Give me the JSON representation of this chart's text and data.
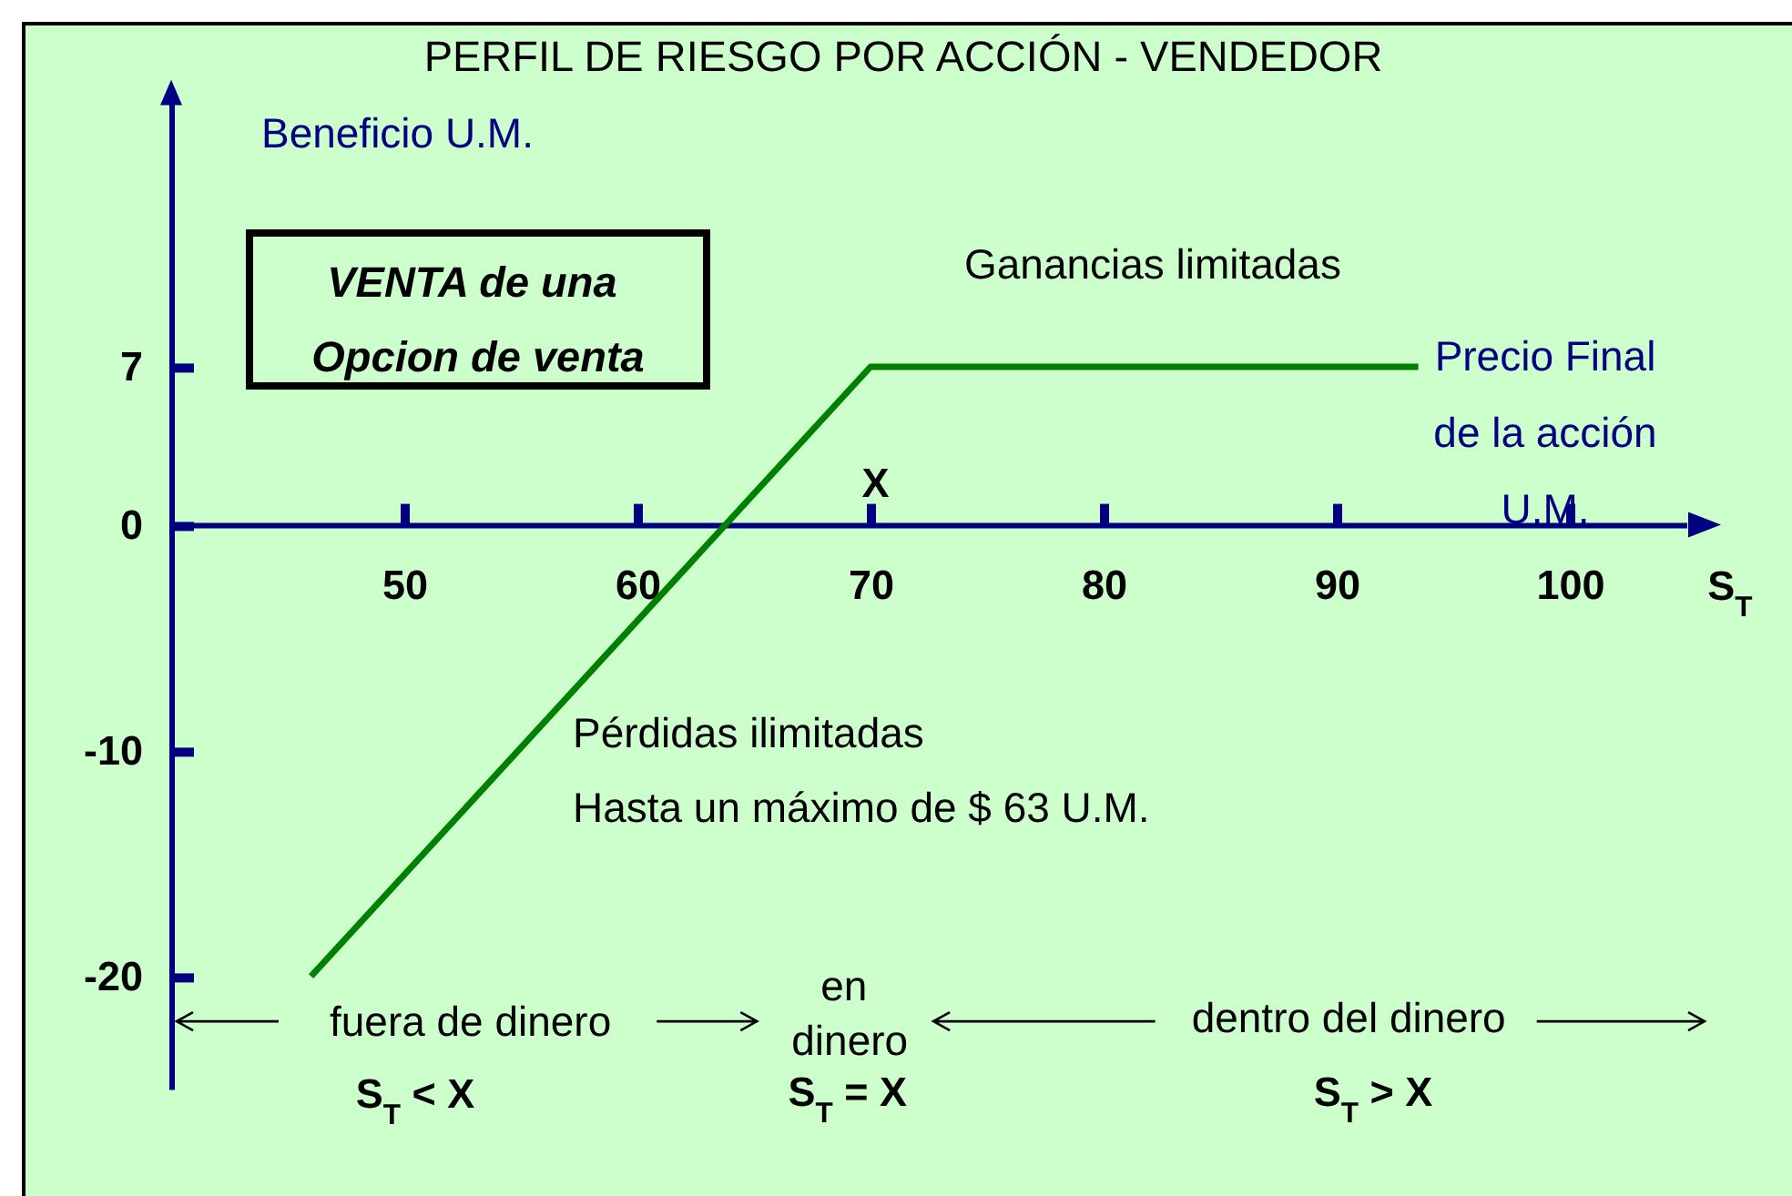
{
  "chart_data": {
    "type": "line",
    "title": "PERFIL DE RIESGO POR ACCIÓN - VENDEDOR",
    "xlabel": "Precio Final de la acción U.M.",
    "ylabel": "Beneficio U.M.",
    "x": [
      46,
      70,
      93.5
    ],
    "series": [
      {
        "color": "#008000",
        "values": [
          -20,
          7,
          7
        ]
      }
    ],
    "xlim": [
      40,
      105
    ],
    "xticks": [
      50,
      60,
      70,
      80,
      90,
      100
    ],
    "ylim": [
      -25,
      19
    ],
    "yticks": [
      -20,
      -10,
      0,
      7
    ],
    "annotations": [
      "VENTA de una Opcion de venta",
      "S$_{T}$",
      "Ganancias limitadas",
      "X",
      "Pérdidas ilimitadas",
      "Hasta un máximo de $ 63 U.M.",
      "fuera de dinero",
      "en dinero",
      "dentro del dinero",
      "S$_{T}$ < X",
      "S$_{T}$ = X",
      "S$_{T}$ > X"
    ]
  }
}
